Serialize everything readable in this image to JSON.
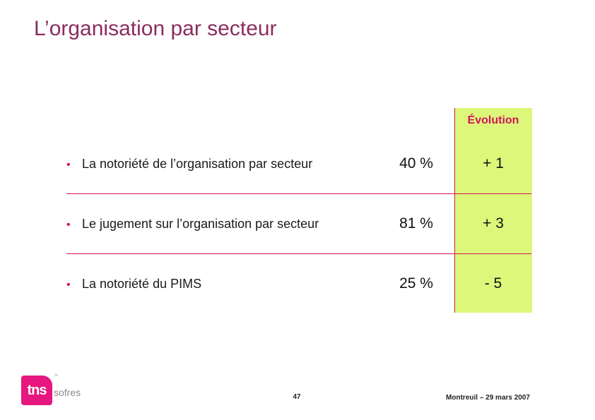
{
  "slide": {
    "title": "L’organisation par secteur",
    "evolution_header": "Évolution",
    "rows": [
      {
        "label": "La notoriété de l’organisation par secteur",
        "value": "40 %",
        "evolution": "+ 1"
      },
      {
        "label": "Le jugement sur l’organisation par secteur",
        "value": "81 %",
        "evolution": "+ 3"
      },
      {
        "label": "La notoriété du PIMS",
        "value": "25 %",
        "evolution": "- 5"
      }
    ],
    "bullet": "•"
  },
  "footer": {
    "logo_main": "tns",
    "logo_sub": "sofres",
    "logo_tm": "™",
    "page_number": "47",
    "location_date": "Montreuil – 29 mars 2007"
  },
  "colors": {
    "title": "#8a2d5c",
    "accent": "#d4145a",
    "highlight": "#dcf77a",
    "logo": "#e6177e"
  }
}
